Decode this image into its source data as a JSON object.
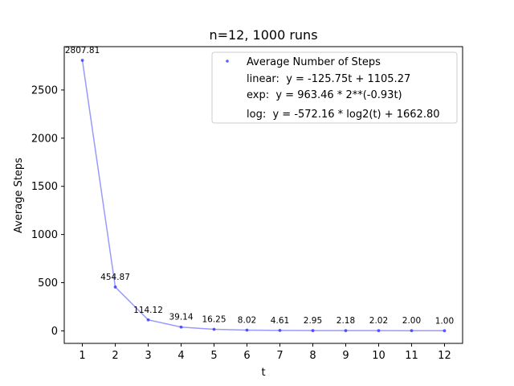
{
  "chart_data": {
    "type": "line",
    "title": "n=12, 1000 runs",
    "xlabel": "t",
    "ylabel": "Average Steps",
    "x": [
      1,
      2,
      3,
      4,
      5,
      6,
      7,
      8,
      9,
      10,
      11,
      12
    ],
    "series": [
      {
        "name": "Average Number of Steps",
        "values": [
          2807.81,
          454.87,
          114.12,
          39.14,
          16.25,
          8.02,
          4.61,
          2.95,
          2.18,
          2.02,
          2.0,
          1.0
        ],
        "data_labels": [
          "2807.81",
          "454.87",
          "114.12",
          "39.14",
          "16.25",
          "8.02",
          "4.61",
          "2.95",
          "2.18",
          "2.02",
          "2.00",
          "1.00"
        ],
        "color": "#3333ff"
      }
    ],
    "xlim": [
      0.45,
      12.55
    ],
    "ylim": [
      -130,
      2950
    ],
    "x_ticks": [
      1,
      2,
      3,
      4,
      5,
      6,
      7,
      8,
      9,
      10,
      11,
      12
    ],
    "y_ticks": [
      0,
      500,
      1000,
      1500,
      2000,
      2500
    ],
    "grid": false,
    "legend": {
      "placement": "top-right",
      "entries": [
        "Average Number of Steps",
        "linear:  y = -125.75t + 1105.27",
        "exp:  y = 963.46 * 2**(-0.93t)",
        "log:  y = -572.16 * log2(t) + 1662.80"
      ]
    }
  }
}
